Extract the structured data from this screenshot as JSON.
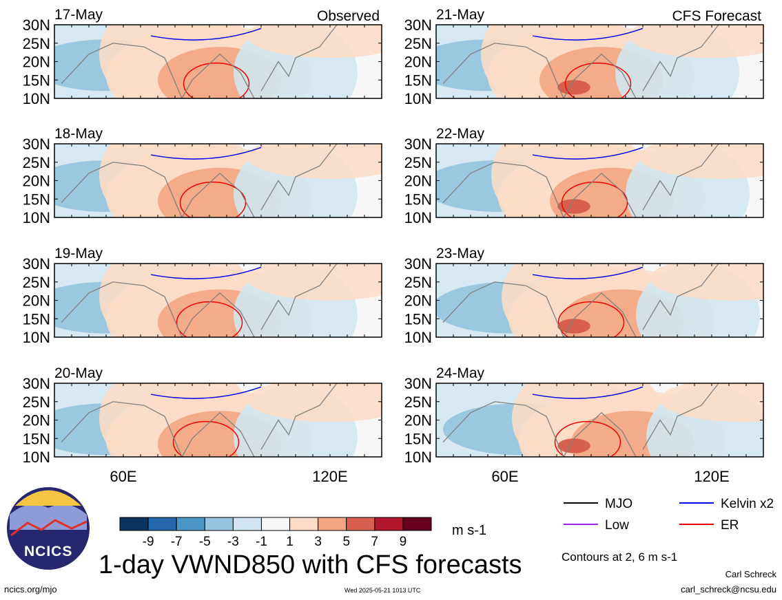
{
  "figure": {
    "title": "1-day VWND850 with CFS forecasts",
    "units": "m s-1",
    "contour_note": "Contours at 2, 6 m s-1",
    "author": "Carl Schreck",
    "email": "carl_schreck@ncsu.edu",
    "website": "ncics.org/mjo",
    "timestamp": "Wed 2025-05-21 1013 UTC",
    "logo_text": "NCICS",
    "observed_label": "Observed",
    "forecast_label": "CFS Forecast"
  },
  "colors": {
    "neg9": "#0b3360",
    "neg7": "#2467ac",
    "neg5": "#4c96c6",
    "neg3": "#94c4df",
    "neg1": "#d1e5f0",
    "zero": "#f7f7f7",
    "pos1": "#fcdbc7",
    "pos3": "#f3a582",
    "pos5": "#d6604d",
    "pos7": "#b2182b",
    "pos9": "#67001f",
    "mjo": "#000000",
    "kelvin": "#0000ee",
    "low": "#a020f0",
    "er": "#ee0000"
  },
  "chart_data": {
    "type": "heatmap",
    "variable": "VWND850",
    "y_ticks": [
      "30N",
      "25N",
      "20N",
      "15N",
      "10N"
    ],
    "x_ticks": [
      "60E",
      "120E"
    ],
    "colorbar": {
      "levels": [
        -9,
        -7,
        -5,
        -3,
        -1,
        1,
        3,
        5,
        7,
        9
      ],
      "labels": [
        "-9",
        "-7",
        "-5",
        "-3",
        "-1",
        "1",
        "3",
        "5",
        "7",
        "9"
      ]
    },
    "legend": [
      {
        "name": "MJO",
        "color": "#000000"
      },
      {
        "name": "Kelvin x2",
        "color": "#0000ee"
      },
      {
        "name": "Low",
        "color": "#a020f0"
      },
      {
        "name": "ER",
        "color": "#ee0000"
      }
    ],
    "panels": [
      {
        "date": "17-May",
        "kind": "observed"
      },
      {
        "date": "18-May",
        "kind": "observed"
      },
      {
        "date": "19-May",
        "kind": "observed"
      },
      {
        "date": "20-May",
        "kind": "observed"
      },
      {
        "date": "21-May",
        "kind": "forecast"
      },
      {
        "date": "22-May",
        "kind": "forecast"
      },
      {
        "date": "23-May",
        "kind": "forecast"
      },
      {
        "date": "24-May",
        "kind": "forecast"
      }
    ]
  }
}
